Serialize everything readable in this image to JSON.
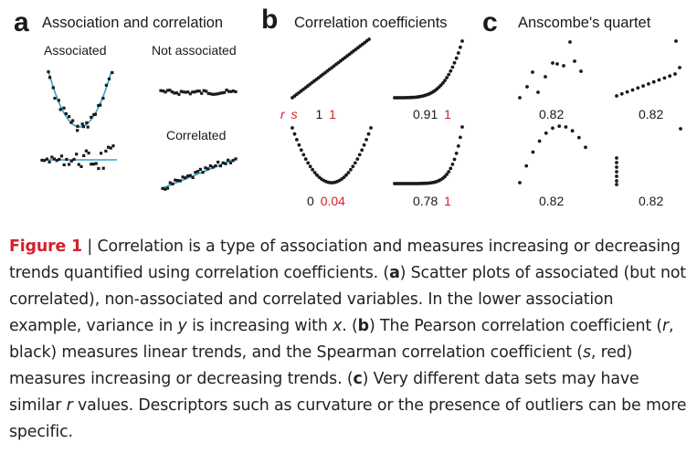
{
  "figure": {
    "panels": [
      {
        "letter": "a",
        "title": "Association and correlation",
        "subplots": [
          {
            "label": "Associated"
          },
          {
            "label": "Not associated"
          },
          {
            "label": ""
          },
          {
            "label": "Correlated"
          }
        ]
      },
      {
        "letter": "b",
        "title": "Correlation coefficients",
        "subplots": [
          {
            "r": "1",
            "s": "1",
            "r_symbol": "r",
            "s_symbol": "s"
          },
          {
            "r": "0.91",
            "s": "1"
          },
          {
            "r": "0",
            "s": "0.04"
          },
          {
            "r": "0.78",
            "s": "1"
          }
        ]
      },
      {
        "letter": "c",
        "title": "Anscombe's quartet",
        "subplots": [
          {
            "r": "0.82"
          },
          {
            "r": "0.82"
          },
          {
            "r": "0.82"
          },
          {
            "r": "0.82"
          }
        ]
      }
    ],
    "colors": {
      "black": "#1a1a1a",
      "red": "#d3202e",
      "cyan": "#2aa7c9"
    }
  },
  "caption": {
    "figure_label": "Figure 1",
    "separator": " | ",
    "sentence1": "Correlation is a type of association and measures increasing or decreasing trends quantified using correlation coefficients. (",
    "a_letter": "a",
    "a_text1": ") Scatter plots of associated (but not correlated), non-associated and correlated variables. In the lower association example, variance in ",
    "var_y": "y",
    "a_text2": " is increasing with ",
    "var_x": "x",
    "a_text3": ". (",
    "b_letter": "b",
    "b_text1": ") The Pearson correlation coefficient (",
    "var_r": "r",
    "b_text2": ", black) measures linear trends, and the Spearman correlation coefficient (",
    "var_s": "s",
    "b_text3": ", red) measures increasing or decreasing trends. (",
    "c_letter": "c",
    "c_text1": ") Very different data sets may have similar ",
    "var_r2": "r",
    "c_text2": " values. Descriptors such as curvature or the presence of outliers can be more specific."
  }
}
